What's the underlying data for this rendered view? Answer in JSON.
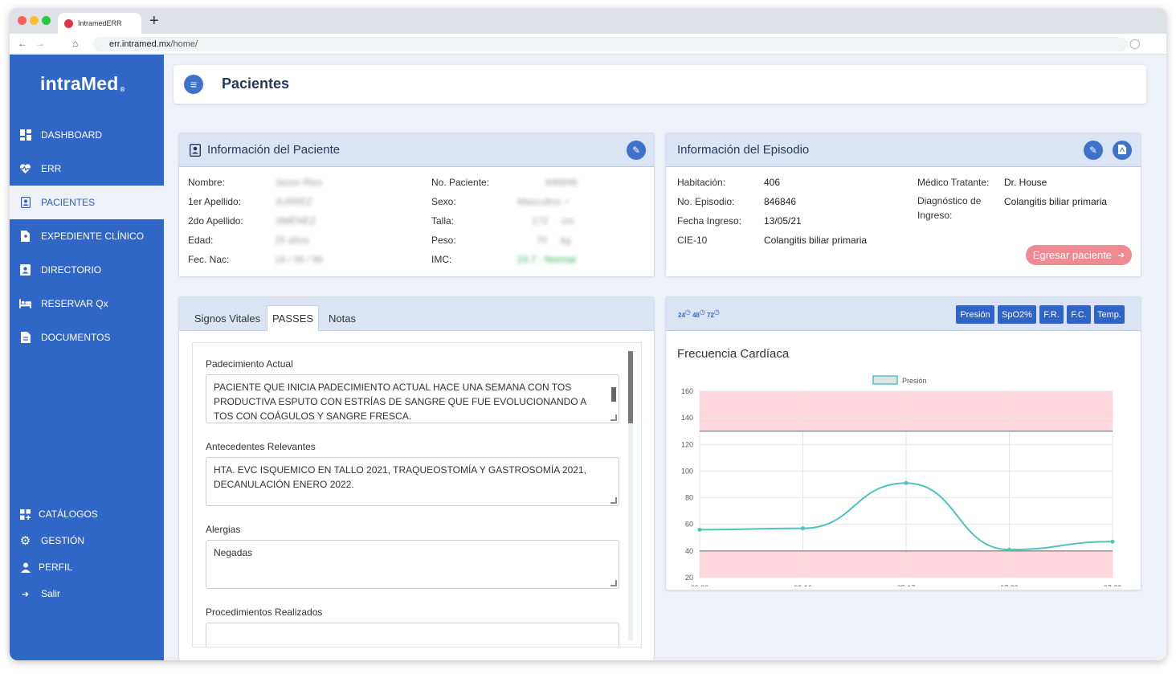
{
  "browser": {
    "tab_title": "IntramedERR",
    "url_host": "err.intramed.mx",
    "url_path": "/home/"
  },
  "sidebar": {
    "logo": "intraMed",
    "logo_mark": "®",
    "items": [
      {
        "label": "DASHBOARD",
        "icon": "dashboard-icon"
      },
      {
        "label": "ERR",
        "icon": "heartbeat-icon"
      },
      {
        "label": "PACIENTES",
        "icon": "patient-id-icon"
      },
      {
        "label": "EXPEDIENTE CLÍNICO",
        "icon": "clinical-file-icon"
      },
      {
        "label": "DIRECTORIO",
        "icon": "directory-icon"
      },
      {
        "label": "RESERVAR Qx",
        "icon": "bed-icon"
      },
      {
        "label": "DOCUMENTOS",
        "icon": "document-icon"
      }
    ],
    "bottom_items": [
      {
        "label": "CATÁLOGOS",
        "icon": "catalog-icon"
      },
      {
        "label": "GESTIÓN",
        "icon": "gear-icon"
      },
      {
        "label": "PERFIL",
        "icon": "user-icon"
      },
      {
        "label": "Salir",
        "icon": "logout-icon"
      }
    ]
  },
  "header": {
    "title": "Pacientes"
  },
  "patient_info": {
    "title": "Información del Paciente",
    "left": [
      {
        "label": "Nombre:",
        "value": "Jason Ries"
      },
      {
        "label": "1er Apellido:",
        "value": "JUÁREZ"
      },
      {
        "label": "2do Apellido:",
        "value": "JIMÉNEZ"
      },
      {
        "label": "Edad:",
        "value": "25 años"
      },
      {
        "label": "Fec. Nac:",
        "value": "18 / 06 / 96"
      }
    ],
    "right": [
      {
        "label": "No. Paciente:",
        "value": "846846"
      },
      {
        "label": "Sexo:",
        "value": "Masculino ♂"
      },
      {
        "label": "Talla:",
        "value": "172     cm"
      },
      {
        "label": "Peso:",
        "value": "70     kg"
      },
      {
        "label": "IMC:",
        "value": "23.7 - Normal"
      }
    ]
  },
  "episode_info": {
    "title": "Información del Episodio",
    "left": [
      {
        "label": "Habitación:",
        "value": "406"
      },
      {
        "label": "No. Episodio:",
        "value": "846846"
      },
      {
        "label": "Fecha Ingreso:",
        "value": "13/05/21"
      },
      {
        "label": "CIE-10",
        "value": "Colangitis biliar primaria"
      }
    ],
    "medico_label": "Médico Tratante:",
    "medico_value": "Dr. House",
    "diag_label": "Diagnóstico de Ingreso:",
    "diag_value": "Colangitis biliar primaria",
    "egresar_label": "Egresar paciente"
  },
  "notes_panel": {
    "tabs": [
      "Signos Vitales",
      "PASSES",
      "Notas"
    ],
    "active_tab": "PASSES",
    "sections": [
      {
        "label": "Padecimiento Actual",
        "text": "PACIENTE QUE INICIA PADECIMIENTO ACTUAL HACE UNA SEMANA CON TOS PRODUCTIVA ESPUTO CON ESTRÍAS DE SANGRE QUE FUE EVOLUCIONANDO A TOS CON COÁGULOS Y SANGRE FRESCA."
      },
      {
        "label": "Antecedentes Relevantes",
        "text": "HTA. EVC ISQUEMICO EN TALLO 2021, TRAQUEOSTOMÍA Y GASTROSOMÍA 2021, DECANULACIÓN ENERO 2022."
      },
      {
        "label": "Alergias",
        "text": "Negadas"
      },
      {
        "label": "Procedimientos Realizados",
        "text": ""
      }
    ]
  },
  "chart_panel": {
    "toolbar_icons": [
      {
        "number": "24",
        "icon": "clock-24-icon"
      },
      {
        "number": "48",
        "icon": "clock-48-icon"
      },
      {
        "number": "72",
        "icon": "clock-72-icon"
      }
    ],
    "buttons": [
      "Presión",
      "SpO2%",
      "F.R.",
      "F.C.",
      "Temp."
    ],
    "title": "Frecuencia Cardíaca"
  },
  "chart_data": {
    "type": "line",
    "title": "Frecuencia Cardíaca",
    "x": [
      "09:06",
      "09:16",
      "05:17",
      "07:29",
      "07:33"
    ],
    "series": [
      {
        "name": "Presión",
        "values": [
          56,
          57,
          91,
          41,
          47
        ],
        "color": "#4fc2c0"
      }
    ],
    "ylim": [
      20,
      160
    ],
    "yticks": [
      20,
      40,
      60,
      80,
      100,
      120,
      140,
      160
    ],
    "bands": [
      {
        "from": 130,
        "to": 160,
        "color": "#ffd6dd"
      },
      {
        "from": 20,
        "to": 40,
        "color": "#ffd6dd"
      }
    ],
    "thresholds": [
      130,
      40
    ],
    "grid": true,
    "legend": "top-center"
  },
  "colors": {
    "sidebar": "#3067c6",
    "accent": "#3f72c9",
    "card_header": "#dbe4f5",
    "egresar": "#f08a92",
    "line": "#4fc2c0",
    "band": "#ffd6dd"
  }
}
